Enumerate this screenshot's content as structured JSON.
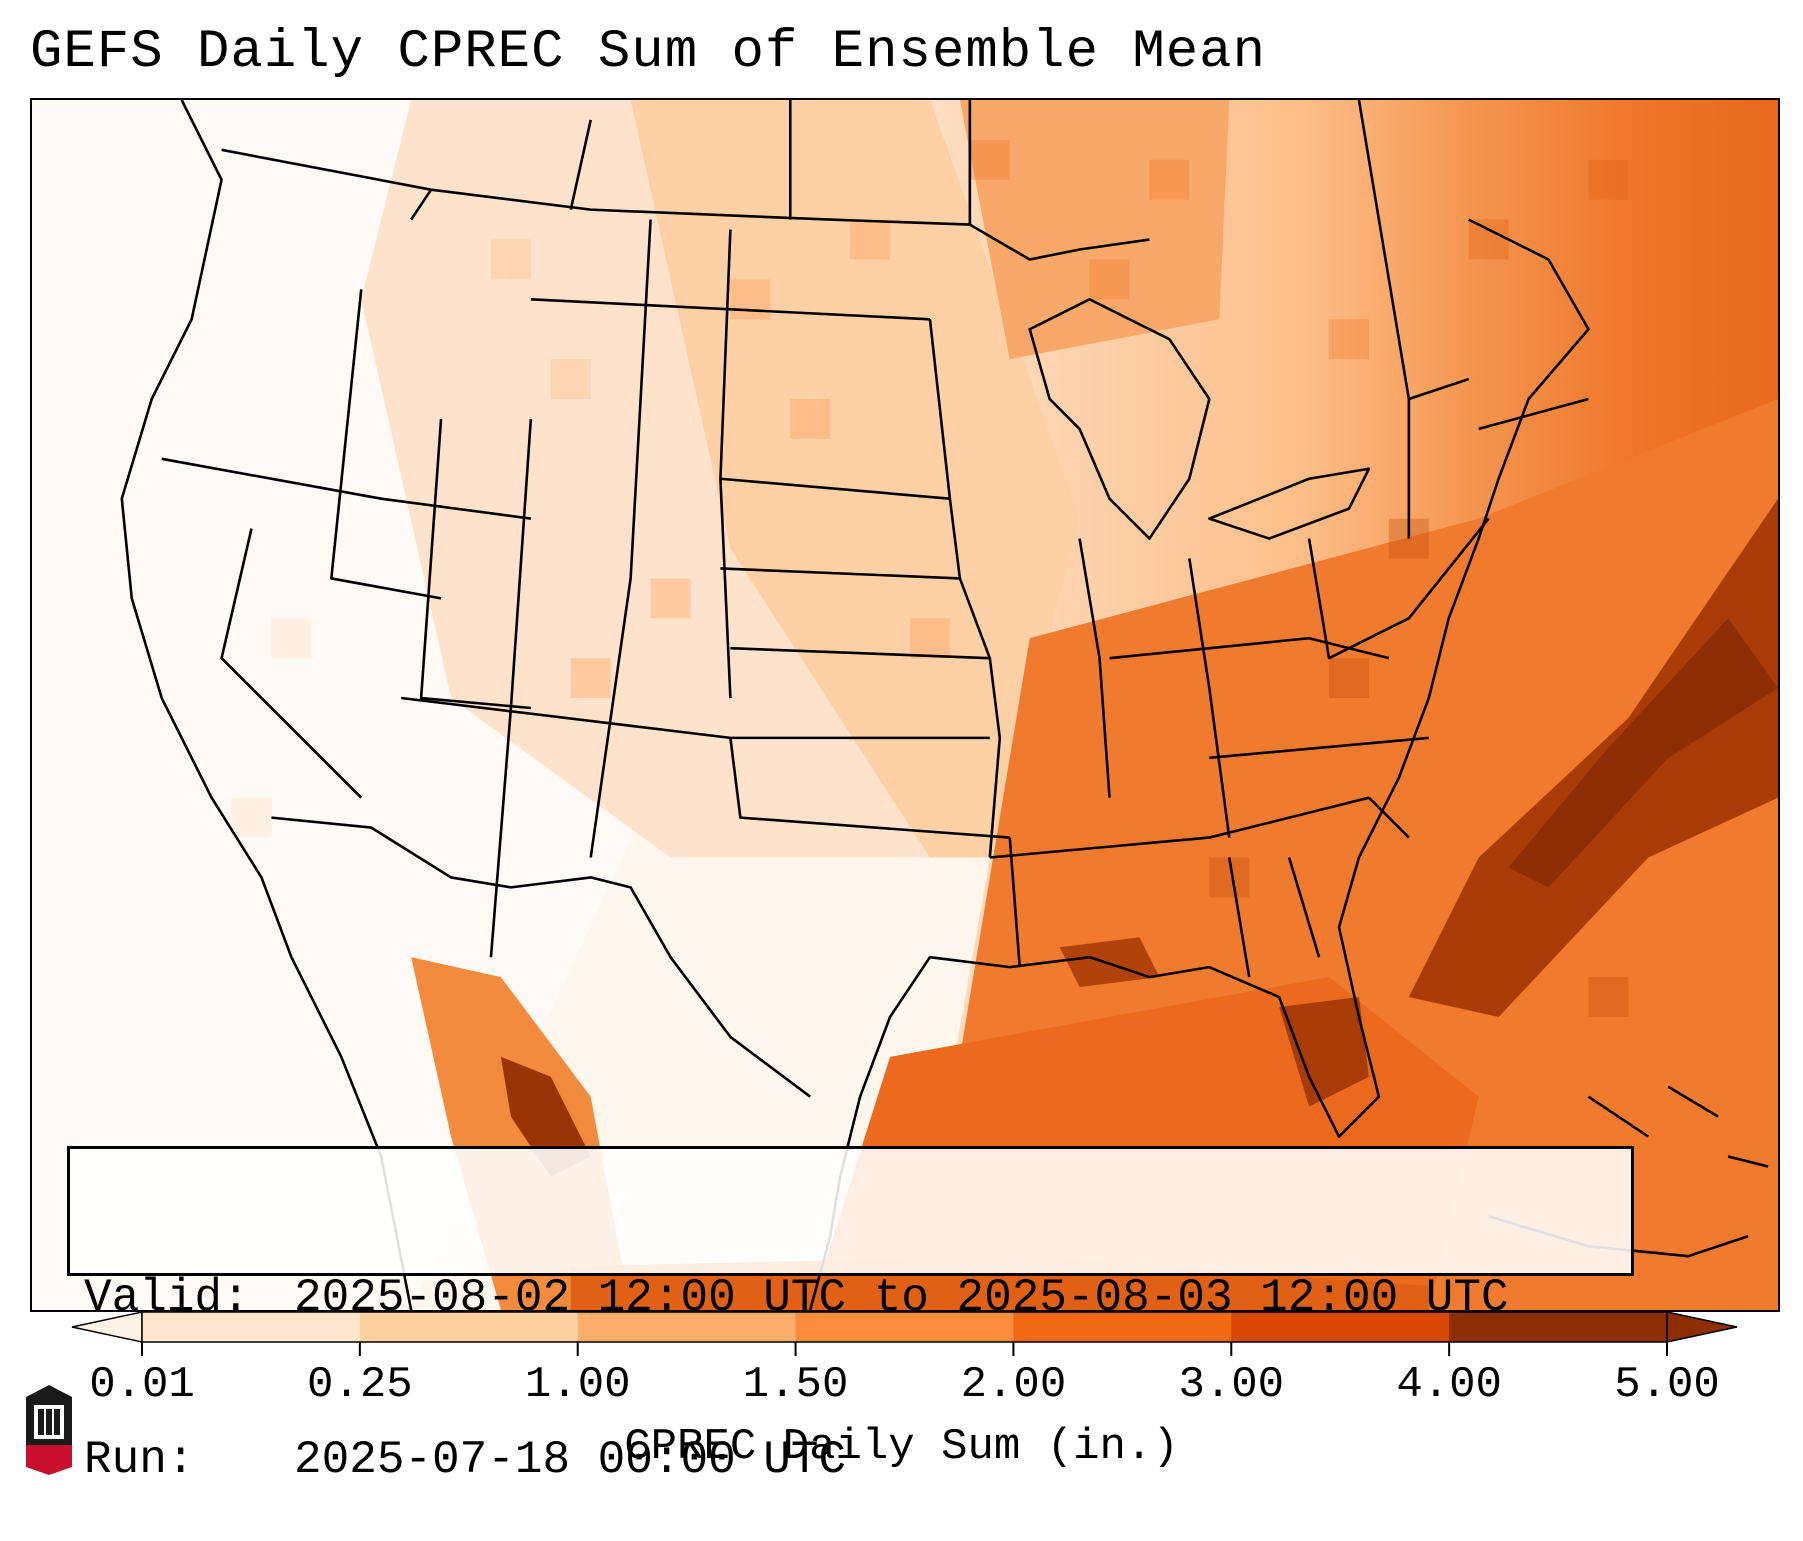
{
  "title": "GEFS Daily CPREC Sum of Ensemble Mean",
  "valid": {
    "label": "Valid:",
    "value": "2025-08-02 12:00 UTC to 2025-08-03 12:00 UTC"
  },
  "run": {
    "label": "Run:",
    "value": "2025-07-18 00:00 UTC"
  },
  "colorbar": {
    "label": "CPREC Daily Sum (in.)",
    "ticks": [
      "0.01",
      "0.25",
      "1.00",
      "1.50",
      "2.00",
      "3.00",
      "4.00",
      "5.00"
    ],
    "colors": [
      "#fff3e8",
      "#fee6ce",
      "#fdd0a2",
      "#fdae6b",
      "#fd8d3c",
      "#f16913",
      "#d94801",
      "#8c2d04"
    ]
  },
  "logo": {
    "text": "NIU",
    "color": "#c8102e"
  },
  "map": {
    "ocean_color": "#ffffff",
    "border_color": "#000000"
  }
}
